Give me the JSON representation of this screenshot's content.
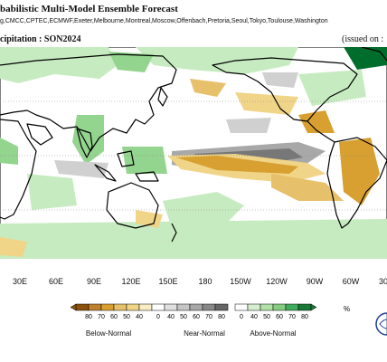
{
  "header": {
    "title": "babilistic Multi-Model Ensemble Forecast",
    "centres": "g,CMCC,CPTEC,ECMWF,Exeter,Melbourne,Montreal,Moscow,Offenbach,Pretoria,Seoul,Tokyo,Toulouse,Washington",
    "variable": "cipitation : SON2024",
    "issued": "(issued on :"
  },
  "map": {
    "longitude_labels": [
      "30E",
      "60E",
      "90E",
      "120E",
      "150E",
      "180",
      "150W",
      "120W",
      "90W",
      "60W",
      "30"
    ],
    "colors": {
      "below_strong": "#8c510a",
      "below_mid": "#d8a031",
      "below_weak": "#f0d488",
      "normal_strong": "#777777",
      "normal_mid": "#a8a8a8",
      "normal_weak": "#d0d0d0",
      "above_weak": "#c7ebc0",
      "above_mid": "#93d48e",
      "above_strong": "#006d2c",
      "coast": "#000000"
    }
  },
  "legend": {
    "below_ticks": [
      "80",
      "70",
      "60",
      "50",
      "40"
    ],
    "near_ticks": [
      "0",
      "40",
      "50",
      "60",
      "70",
      "80"
    ],
    "above_ticks": [
      "0",
      "40",
      "50",
      "60",
      "70",
      "80"
    ],
    "unit": "%",
    "below_label": "Below-Normal",
    "near_label": "Near-Normal",
    "above_label": "Above-Normal",
    "below_colors": [
      "#8c510a",
      "#bf812d",
      "#d8a031",
      "#e6c06b",
      "#f0d488",
      "#f9edc4"
    ],
    "near_colors": [
      "#ffffff",
      "#e0e0e0",
      "#c6c6c6",
      "#a8a8a8",
      "#888888",
      "#666666"
    ],
    "above_colors": [
      "#ffffff",
      "#d6efd0",
      "#b1e0a8",
      "#86cc80",
      "#41ab5d",
      "#1b7837"
    ]
  }
}
